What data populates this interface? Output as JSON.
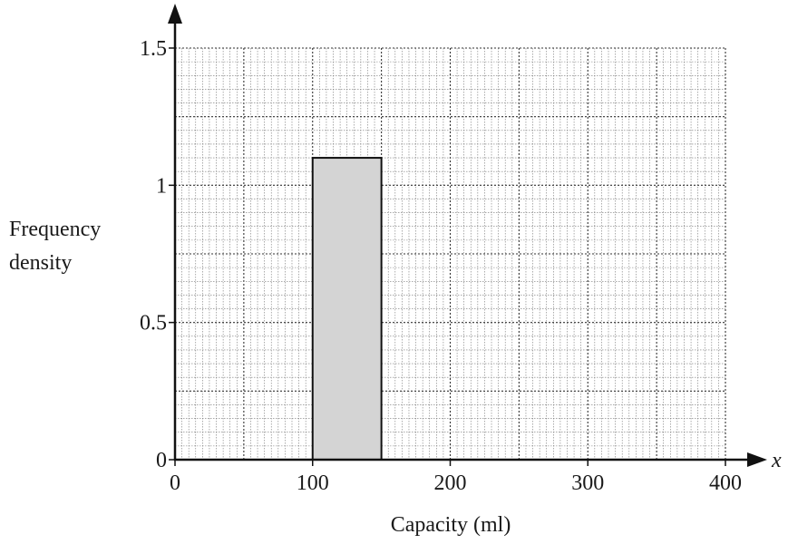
{
  "chart_data": {
    "type": "bar",
    "title": "",
    "xlabel": "Capacity (ml)",
    "ylabel_lines": [
      "Frequency",
      "density"
    ],
    "x_axis_symbol": "x",
    "xlim": [
      0,
      400
    ],
    "ylim": [
      0,
      1.5
    ],
    "x_ticks": [
      {
        "value": 0,
        "label": "0"
      },
      {
        "value": 100,
        "label": "100"
      },
      {
        "value": 200,
        "label": "200"
      },
      {
        "value": 300,
        "label": "300"
      },
      {
        "value": 400,
        "label": "400"
      }
    ],
    "y_ticks": [
      {
        "value": 0,
        "label": "0"
      },
      {
        "value": 0.5,
        "label": "0.5"
      },
      {
        "value": 1,
        "label": "1"
      },
      {
        "value": 1.5,
        "label": "1.5"
      }
    ],
    "grid": true,
    "bars": [
      {
        "x_start": 100,
        "x_end": 150,
        "value": 1.1,
        "color": "#d4d4d4"
      }
    ]
  }
}
